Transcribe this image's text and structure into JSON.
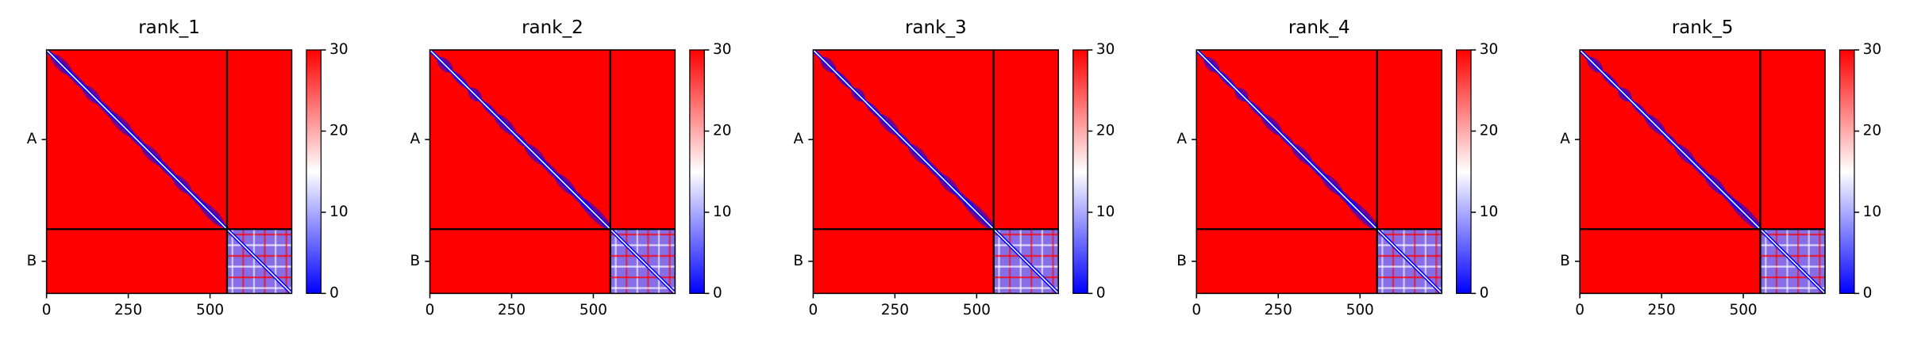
{
  "chart_data": [
    {
      "type": "heatmap",
      "title": "rank_1",
      "xlim": [
        0,
        750
      ],
      "xticks": [
        0,
        250,
        500
      ],
      "categories": [
        "A",
        "B"
      ],
      "segments": [
        552,
        198
      ],
      "clim": [
        0,
        30
      ],
      "cticks": [
        0,
        10,
        20,
        30
      ],
      "colors": [
        "#0000ff",
        "#ffffff",
        "#ff0000"
      ]
    },
    {
      "type": "heatmap",
      "title": "rank_2",
      "xlim": [
        0,
        750
      ],
      "xticks": [
        0,
        250,
        500
      ],
      "categories": [
        "A",
        "B"
      ],
      "segments": [
        552,
        198
      ],
      "clim": [
        0,
        30
      ],
      "cticks": [
        0,
        10,
        20,
        30
      ],
      "colors": [
        "#0000ff",
        "#ffffff",
        "#ff0000"
      ]
    },
    {
      "type": "heatmap",
      "title": "rank_3",
      "xlim": [
        0,
        750
      ],
      "xticks": [
        0,
        250,
        500
      ],
      "categories": [
        "A",
        "B"
      ],
      "segments": [
        552,
        198
      ],
      "clim": [
        0,
        30
      ],
      "cticks": [
        0,
        10,
        20,
        30
      ],
      "colors": [
        "#0000ff",
        "#ffffff",
        "#ff0000"
      ]
    },
    {
      "type": "heatmap",
      "title": "rank_4",
      "xlim": [
        0,
        750
      ],
      "xticks": [
        0,
        250,
        500
      ],
      "categories": [
        "A",
        "B"
      ],
      "segments": [
        552,
        198
      ],
      "clim": [
        0,
        30
      ],
      "cticks": [
        0,
        10,
        20,
        30
      ],
      "colors": [
        "#0000ff",
        "#ffffff",
        "#ff0000"
      ]
    },
    {
      "type": "heatmap",
      "title": "rank_5",
      "xlim": [
        0,
        750
      ],
      "xticks": [
        0,
        250,
        500
      ],
      "categories": [
        "A",
        "B"
      ],
      "segments": [
        552,
        198
      ],
      "clim": [
        0,
        30
      ],
      "cticks": [
        0,
        10,
        20,
        30
      ],
      "colors": [
        "#0000ff",
        "#ffffff",
        "#ff0000"
      ]
    }
  ]
}
